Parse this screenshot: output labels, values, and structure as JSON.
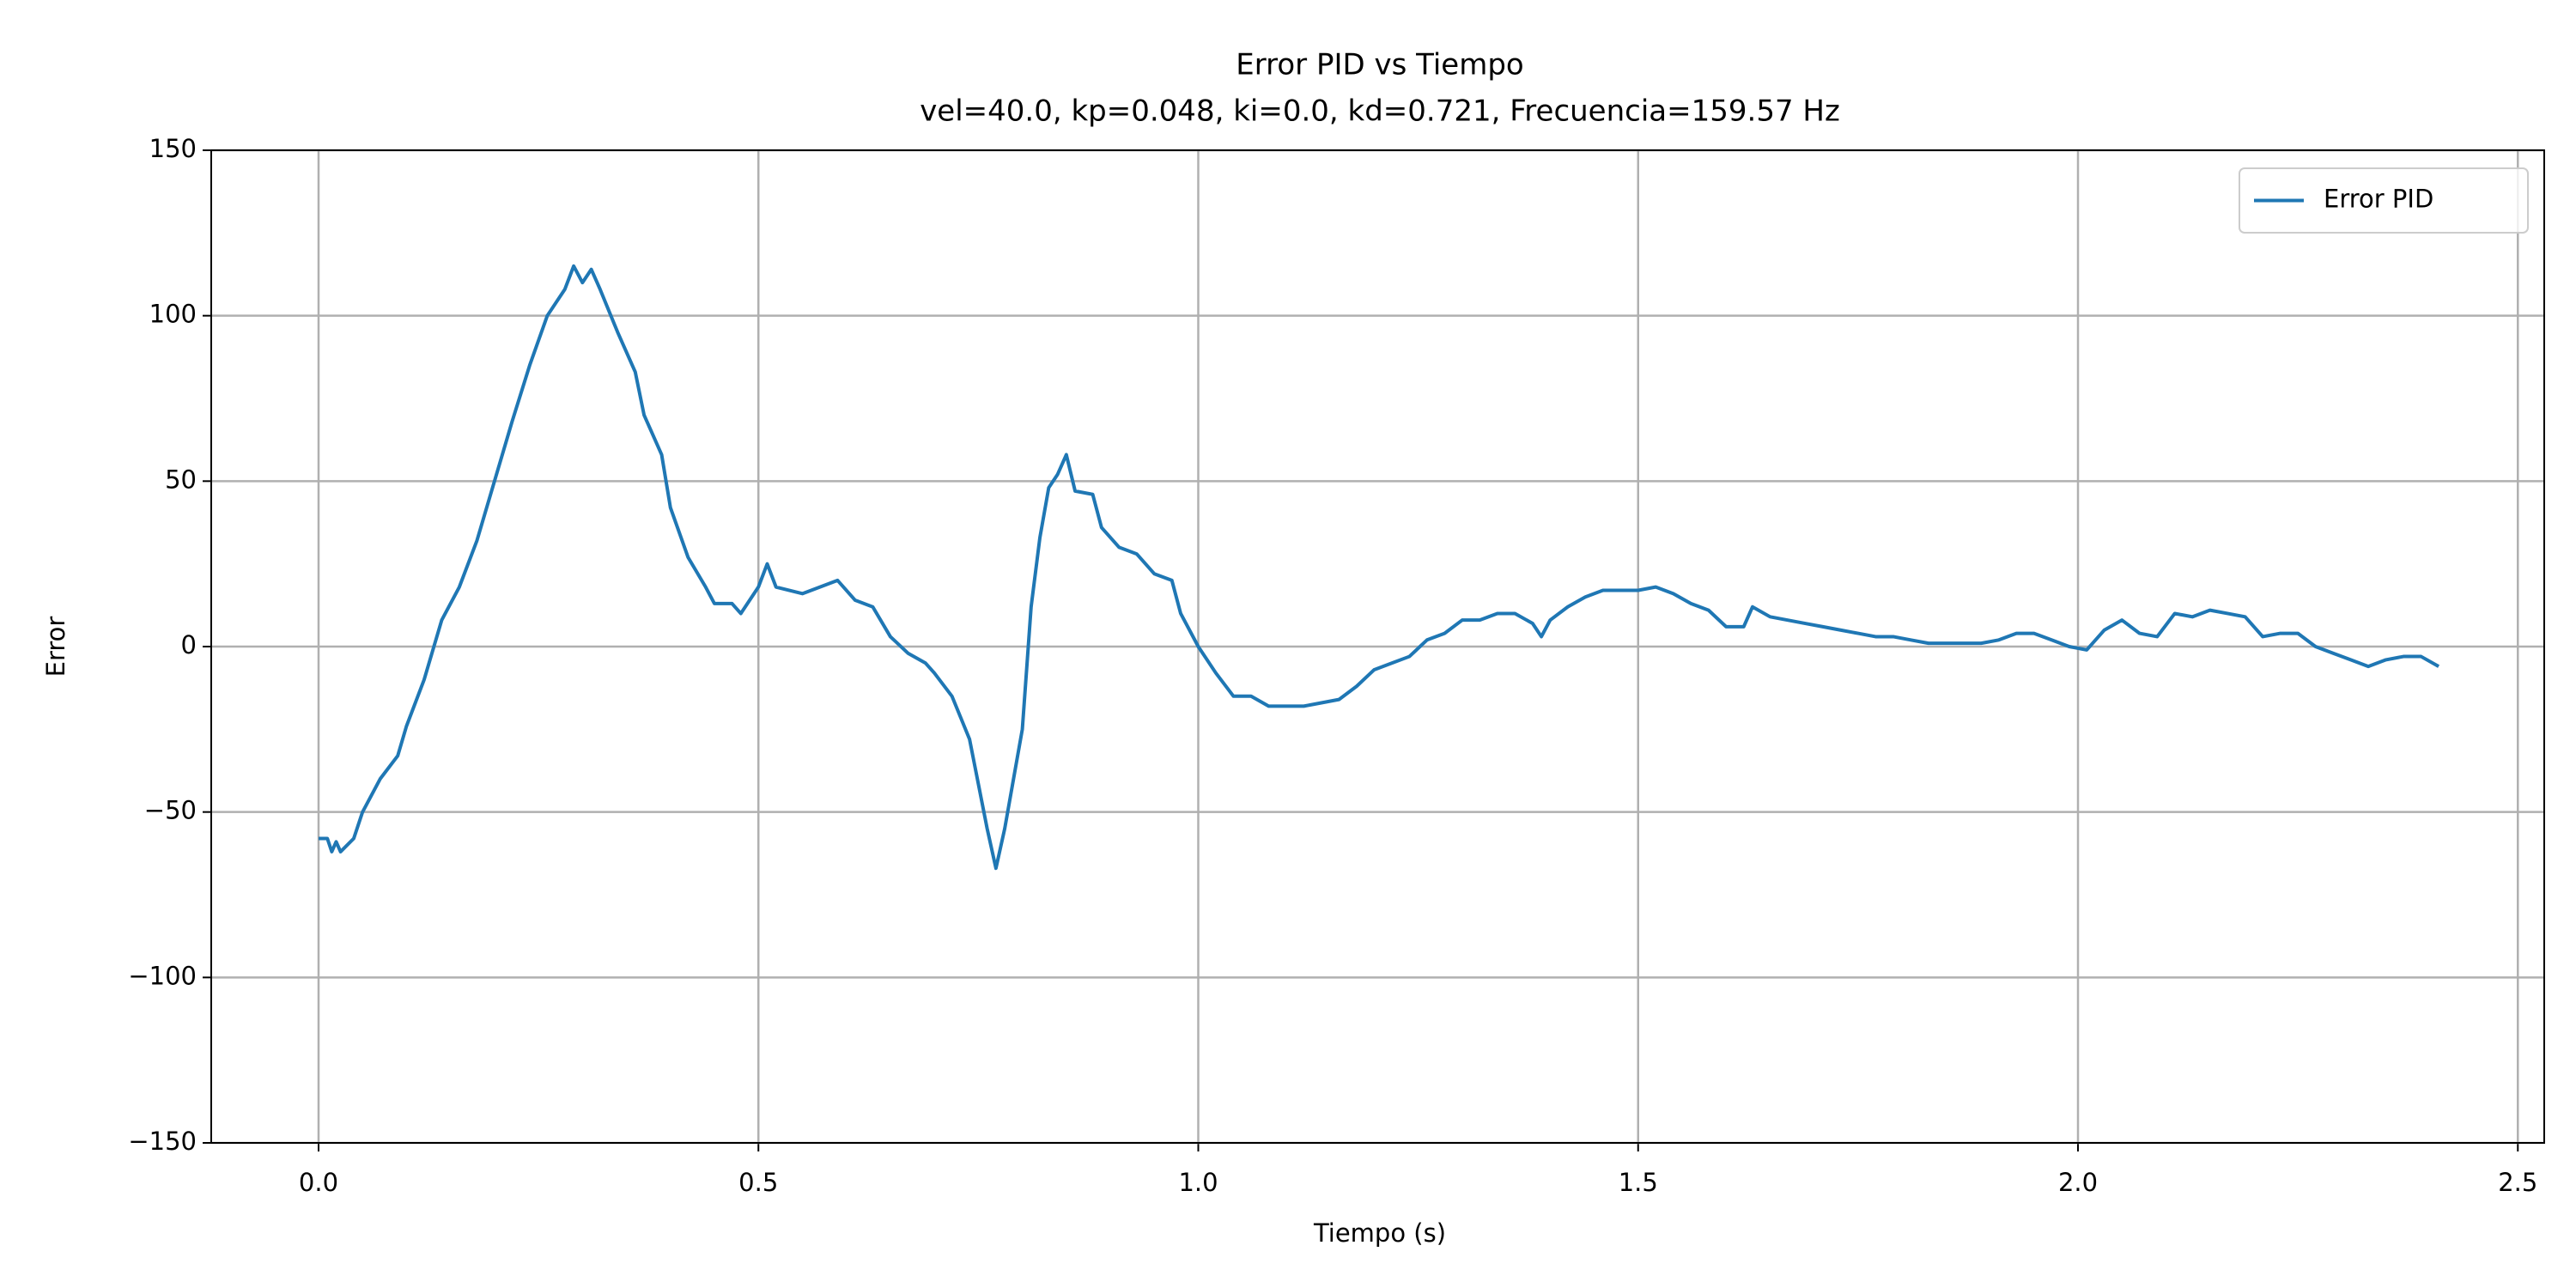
{
  "chart_data": {
    "type": "line",
    "title": "Error PID vs Tiempo",
    "subtitle": "vel=40.0, kp=0.048, ki=0.0, kd=0.721, Frecuencia=159.57 Hz",
    "x_label": "Tiempo (s)",
    "y_label": "Error",
    "x": [
      0,
      0.01,
      0.015,
      0.02,
      0.025,
      0.04,
      0.05,
      0.07,
      0.09,
      0.1,
      0.12,
      0.14,
      0.16,
      0.18,
      0.2,
      0.22,
      0.24,
      0.26,
      0.28,
      0.29,
      0.3,
      0.31,
      0.32,
      0.34,
      0.36,
      0.37,
      0.39,
      0.4,
      0.42,
      0.44,
      0.45,
      0.47,
      0.48,
      0.5,
      0.51,
      0.52,
      0.55,
      0.57,
      0.59,
      0.61,
      0.63,
      0.65,
      0.67,
      0.69,
      0.7,
      0.72,
      0.74,
      0.76,
      0.77,
      0.78,
      0.79,
      0.8,
      0.81,
      0.82,
      0.83,
      0.84,
      0.85,
      0.86,
      0.88,
      0.89,
      0.91,
      0.93,
      0.95,
      0.97,
      0.98,
      1.0,
      1.02,
      1.04,
      1.06,
      1.08,
      1.1,
      1.12,
      1.14,
      1.16,
      1.18,
      1.2,
      1.22,
      1.24,
      1.26,
      1.28,
      1.3,
      1.32,
      1.34,
      1.36,
      1.38,
      1.39,
      1.4,
      1.42,
      1.44,
      1.46,
      1.48,
      1.5,
      1.52,
      1.54,
      1.56,
      1.58,
      1.6,
      1.62,
      1.63,
      1.65,
      1.67,
      1.69,
      1.71,
      1.73,
      1.75,
      1.77,
      1.79,
      1.81,
      1.83,
      1.85,
      1.87,
      1.89,
      1.91,
      1.93,
      1.95,
      1.97,
      1.99,
      2.01,
      2.03,
      2.05,
      2.07,
      2.09,
      2.11,
      2.13,
      2.15,
      2.17,
      2.19,
      2.21,
      2.23,
      2.25,
      2.27,
      2.29,
      2.31,
      2.33,
      2.35,
      2.37,
      2.39,
      2.41
    ],
    "series": [
      {
        "name": "Error PID",
        "color": "#1f77b4",
        "values": [
          -58,
          -58,
          -62,
          -59,
          -62,
          -58,
          -50,
          -40,
          -33,
          -24,
          -10,
          8,
          18,
          32,
          50,
          68,
          85,
          100,
          108,
          115,
          110,
          114,
          108,
          95,
          83,
          70,
          58,
          42,
          27,
          18,
          13,
          13,
          10,
          18,
          25,
          18,
          16,
          18,
          20,
          14,
          12,
          3,
          -2,
          -5,
          -8,
          -15,
          -28,
          -55,
          -67,
          -55,
          -40,
          -25,
          12,
          33,
          48,
          52,
          58,
          47,
          46,
          36,
          30,
          28,
          22,
          20,
          10,
          0,
          -8,
          -15,
          -15,
          -18,
          -18,
          -18,
          -17,
          -16,
          -12,
          -7,
          -5,
          -3,
          2,
          4,
          8,
          8,
          10,
          10,
          7,
          3,
          8,
          12,
          15,
          17,
          17,
          17,
          18,
          16,
          13,
          11,
          6,
          6,
          12,
          9,
          8,
          7,
          6,
          5,
          4,
          3,
          3,
          2,
          1,
          1,
          1,
          1,
          2,
          4,
          4,
          2,
          0,
          -1,
          5,
          8,
          4,
          3,
          10,
          9,
          11,
          10,
          9,
          3,
          4,
          4,
          0,
          -2,
          -4,
          -6,
          -4,
          -3,
          -3,
          -6
        ]
      }
    ],
    "xlim": [
      -0.122,
      2.53
    ],
    "ylim": [
      -150,
      150
    ],
    "xticks": [
      {
        "value": 0,
        "label": "0.0"
      },
      0.5,
      {
        "value": 1,
        "label": "1.0"
      },
      1.5,
      {
        "value": 2,
        "label": "2.0"
      },
      2.5
    ],
    "yticks": [
      {
        "value": -150,
        "label": "−150"
      },
      {
        "value": -100,
        "label": "−100"
      },
      {
        "value": -50,
        "label": "−50"
      },
      0,
      50,
      100,
      150
    ],
    "grid": true,
    "legend": "upper-right"
  }
}
